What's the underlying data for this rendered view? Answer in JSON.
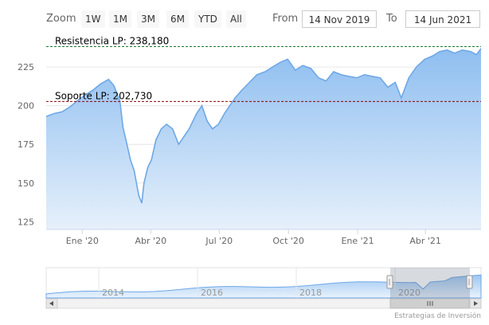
{
  "toolbar": {
    "zoom_label": "Zoom",
    "zoom_buttons": [
      "1W",
      "1M",
      "3M",
      "6M",
      "YTD",
      "All"
    ],
    "from_label": "From",
    "from_value": "14 Nov 2019",
    "to_label": "To",
    "to_value": "14 Jun 2021"
  },
  "credit": "Estrategias de Inversión",
  "colors": {
    "line": "#6fa8e6",
    "area_top": "#8ebef0",
    "area_bottom": "#e6f0fb",
    "resistance": "#1a7a2a",
    "support": "#8b0000"
  },
  "chart_data": {
    "type": "area",
    "x_tick_labels": [
      "Ene '20",
      "Abr '20",
      "Jul '20",
      "Oct '20",
      "Ene '21",
      "Abr '21"
    ],
    "y_tick_labels": [
      "125",
      "150",
      "175",
      "200",
      "225"
    ],
    "ylim": [
      120,
      240
    ],
    "xlim": [
      "2019-11-14",
      "2021-06-14"
    ],
    "grid": true,
    "annotations": [
      {
        "label": "Resistencia LP: 238,180",
        "value": 238.18,
        "style": "dashed"
      },
      {
        "label": "Soporte LP: 202,730",
        "value": 202.73,
        "style": "dashed"
      }
    ],
    "series": [
      {
        "x": [
          "2019-11-14",
          "2019-11-25",
          "2019-12-05",
          "2019-12-15",
          "2019-12-25",
          "2020-01-05",
          "2020-01-15",
          "2020-01-25",
          "2020-02-05",
          "2020-02-12",
          "2020-02-20",
          "2020-02-24",
          "2020-02-28",
          "2020-03-05",
          "2020-03-10",
          "2020-03-16",
          "2020-03-20",
          "2020-03-23",
          "2020-03-28",
          "2020-04-02",
          "2020-04-08",
          "2020-04-15",
          "2020-04-22",
          "2020-04-30",
          "2020-05-08",
          "2020-05-15",
          "2020-05-22",
          "2020-06-01",
          "2020-06-08",
          "2020-06-15",
          "2020-06-22",
          "2020-06-30",
          "2020-07-08",
          "2020-07-15",
          "2020-07-22",
          "2020-07-31",
          "2020-08-10",
          "2020-08-20",
          "2020-08-31",
          "2020-09-10",
          "2020-09-20",
          "2020-09-30",
          "2020-10-10",
          "2020-10-20",
          "2020-10-31",
          "2020-11-10",
          "2020-11-20",
          "2020-11-30",
          "2020-12-10",
          "2020-12-20",
          "2020-12-31",
          "2021-01-10",
          "2021-01-20",
          "2021-01-31",
          "2021-02-10",
          "2021-02-20",
          "2021-02-28",
          "2021-03-10",
          "2021-03-20",
          "2021-03-31",
          "2021-04-10",
          "2021-04-20",
          "2021-04-30",
          "2021-05-10",
          "2021-05-20",
          "2021-05-31",
          "2021-06-08",
          "2021-06-14"
        ],
        "values": [
          193,
          195,
          196,
          199,
          203,
          207,
          210,
          214,
          217,
          213,
          203,
          186,
          178,
          165,
          158,
          142,
          137,
          150,
          160,
          165,
          178,
          185,
          188,
          185,
          175,
          180,
          185,
          195,
          200,
          190,
          185,
          188,
          195,
          200,
          205,
          210,
          215,
          220,
          222,
          225,
          228,
          230,
          223,
          226,
          224,
          218,
          216,
          222,
          220,
          219,
          218,
          220,
          219,
          218,
          212,
          215,
          205,
          218,
          225,
          230,
          232,
          235,
          236,
          234,
          236,
          235,
          233,
          237
        ]
      }
    ]
  }
}
